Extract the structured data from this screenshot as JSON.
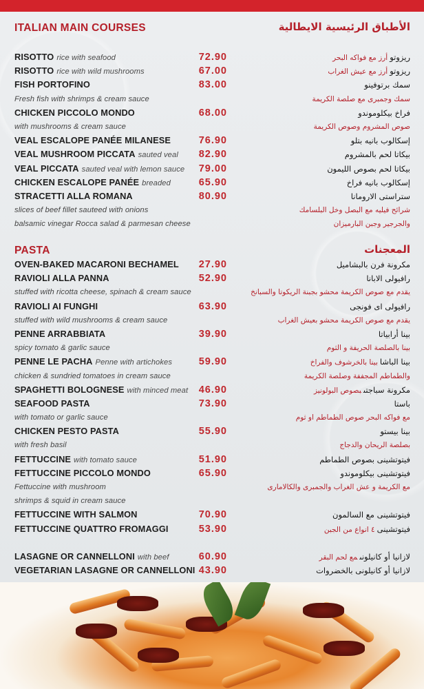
{
  "colors": {
    "accent": "#c0272d",
    "topbar": "#d3232b",
    "background": "#e8ebed"
  },
  "main": {
    "title": "ITALIAN MAIN COURSES",
    "title_ar": "الأطباق الرئيسية الايطالية",
    "rows": [
      {
        "type": "item",
        "en": "RISOTTO",
        "en_note": "rice with seafood",
        "price": "72.90",
        "ar": "ريزوتو",
        "ar_note": "أرز مع فواكه البحر"
      },
      {
        "type": "item",
        "en": "RISOTTO",
        "en_note": "rice with wild mushrooms",
        "price": "67.00",
        "ar": "ريزوتو",
        "ar_note": "أرز مع عيش الغراب"
      },
      {
        "type": "item",
        "en": "FISH PORTOFINO",
        "price": "83.00",
        "ar": "سمك برتوفينو"
      },
      {
        "type": "desc",
        "en": "Fresh fish with shrimps & cream sauce",
        "ar": "سمك وجمبرى مع صلصة الكريمة"
      },
      {
        "type": "item",
        "en": "CHICKEN PICCOLO MONDO",
        "price": "68.00",
        "ar": "فراخ بيكلوموندو"
      },
      {
        "type": "desc",
        "en": "with mushrooms & cream sauce",
        "ar": "صوص المشروم وصوص الكريمة"
      },
      {
        "type": "item",
        "en": "VEAL ESCALOPE PANÉE MILANESE",
        "price": "76.90",
        "ar": "إسكالوب بانيه بتلو"
      },
      {
        "type": "item",
        "en": "VEAL MUSHROOM PICCATA",
        "en_note": "sauted veal",
        "price": "82.90",
        "ar": "بيكاتا لحم بالمشروم"
      },
      {
        "type": "item",
        "en": "VEAL PICCATA",
        "en_note": "sauted veal with lemon sauce",
        "price": "79.00",
        "ar": "بيكاتا لحم بصوص الليمون"
      },
      {
        "type": "item",
        "en": "CHICKEN ESCALOPE PANÉE",
        "en_note": "breaded",
        "price": "65.90",
        "ar": "إسكالوب بانيه فراخ"
      },
      {
        "type": "item",
        "en": "STRACETTI ALLA ROMANA",
        "price": "80.90",
        "ar": "ستراستى الارومانا"
      },
      {
        "type": "desc",
        "en": "slices of beef fillet sauteed with onions",
        "ar": "شرائح فيليه مع البصل وخل البلسامك"
      },
      {
        "type": "desc",
        "en": "balsamic vinegar Rocca salad & parmesan cheese",
        "ar": "والجرجير وجبن البارميزان"
      }
    ]
  },
  "pasta": {
    "title": "PASTA",
    "title_ar": "المعجنات",
    "rows": [
      {
        "type": "item",
        "en": "OVEN-BAKED MACARONI BECHAMEL",
        "price": "27.90",
        "ar": "مكرونة فرن بالبشاميل"
      },
      {
        "type": "item",
        "en": "RAVIOLI ALLA PANNA",
        "price": "52.90",
        "ar": "رافيولى الابانا"
      },
      {
        "type": "desc",
        "en": "stuffed with ricotta cheese, spinach & cream sauce",
        "ar": "يقدم مع صوص الكريمة محشو بجبنة الريكوتا والسبانخ"
      },
      {
        "type": "item",
        "en": "RAVIOLI AI FUNGHI",
        "price": "63.90",
        "ar": "رافيولى اى فونجى"
      },
      {
        "type": "desc",
        "en": "stuffed with wild mushrooms & cream sauce",
        "ar": "يقدم مع صوص الكريمة محشو بعيش الغراب"
      },
      {
        "type": "item",
        "en": "PENNE ARRABBIATA",
        "price": "39.90",
        "ar": "بينا أرابياتا"
      },
      {
        "type": "desc",
        "en": "spicy tomato & garlic sauce",
        "ar": "بينا بالصلصة الحريفة و الثوم"
      },
      {
        "type": "item",
        "en": "PENNE LE PACHA",
        "en_note": "Penne with artichokes",
        "price": "59.90",
        "ar": "بينا الباشا",
        "ar_note": "بينا بالخرشوف والفراخ"
      },
      {
        "type": "desc",
        "en": "chicken & sundried tomatoes in cream sauce",
        "ar": "والطماطم المجففة وصلصة الكريمة"
      },
      {
        "type": "item",
        "en": "SPAGHETTI BOLOGNESE",
        "en_note": "with minced meat",
        "price": "46.90",
        "ar": "مكرونة سباجتى",
        "ar_note": "بصوص البولونيز"
      },
      {
        "type": "item",
        "en": "SEAFOOD PASTA",
        "price": "73.90",
        "ar": "باستا"
      },
      {
        "type": "desc",
        "en": "with tomato or garlic sauce",
        "ar": "مع فواكه البحر صوص الطماطم او ثوم"
      },
      {
        "type": "item",
        "en": "CHICKEN PESTO PASTA",
        "price": "55.90",
        "ar": "بينا بيستو"
      },
      {
        "type": "desc",
        "en": "with fresh basil",
        "ar": "بصلصة الريحان والدجاج"
      },
      {
        "type": "item",
        "en": "FETTUCCINE",
        "en_note": "with tomato sauce",
        "price": "51.90",
        "ar": "فيتوتشينى بصوص الطماطم"
      },
      {
        "type": "item",
        "en": "FETTUCCINE PICCOLO MONDO",
        "price": "65.90",
        "ar": "فيتوتشينى بيكلوموندو"
      },
      {
        "type": "desc",
        "en": "Fettuccine with mushroom",
        "ar": "مع الكريمة و عش الغراب والجمبرى والكالامارى"
      },
      {
        "type": "desc",
        "en": " shrimps & squid in cream sauce",
        "ar": ""
      },
      {
        "type": "item",
        "en": "FETTUCCINE WITH SALMON",
        "price": "70.90",
        "ar": "فيتوتشينى مع السالمون"
      },
      {
        "type": "item",
        "en": "FETTUCCINE QUATTRO FROMAGGI",
        "price": "53.90",
        "ar": "فيتوتشينى",
        "ar_note": "٤ انواع من الجبن"
      }
    ],
    "extra_rows": [
      {
        "type": "item",
        "en": "LASAGNE OR CANNELLONI",
        "en_note": "with beef",
        "price": "60.90",
        "ar": "لازانيا أو كانيلونى",
        "ar_note": "مع لحم البقر"
      },
      {
        "type": "item",
        "en": "VEGETARIAN LASAGNE OR CANNELLONI",
        "price": "43.90",
        "ar": "لازانيا أو كانيلونى بالخضروات"
      }
    ]
  },
  "photo": {
    "subject": "penne pasta with sundried tomatoes and basil"
  }
}
